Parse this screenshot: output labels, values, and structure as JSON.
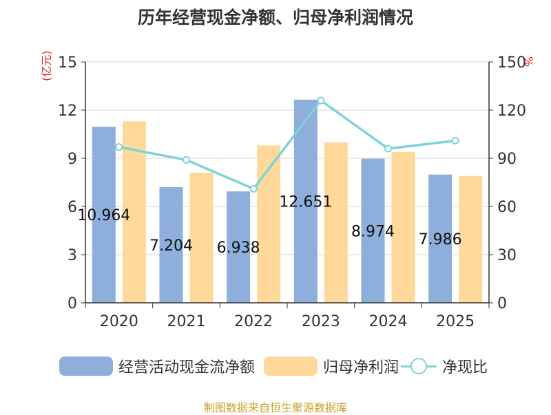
{
  "chart_data": {
    "type": "bar",
    "title": "历年经营现金净额、归母净利润情况",
    "categories": [
      "2020",
      "2021",
      "2022",
      "2023",
      "2024",
      "2025"
    ],
    "series": [
      {
        "name": "经营活动现金流净额",
        "type": "bar",
        "axis": "left",
        "color": "#8eaedb",
        "values": [
          10.964,
          7.204,
          6.938,
          12.651,
          8.974,
          7.986
        ],
        "labels": [
          "10.964",
          "7.204",
          "6.938",
          "12.651",
          "8.974",
          "7.986"
        ]
      },
      {
        "name": "归母净利润",
        "type": "bar",
        "axis": "left",
        "color": "#ffd99a",
        "values": [
          11.3,
          8.1,
          9.8,
          10.0,
          9.4,
          7.9
        ]
      },
      {
        "name": "净现比",
        "type": "line",
        "axis": "right",
        "color": "#7fd2d8",
        "values": [
          97,
          89,
          71,
          126,
          96,
          101
        ]
      }
    ],
    "y_left": {
      "label": "(亿元)",
      "min": 0,
      "max": 15,
      "ticks": [
        0,
        3,
        6,
        9,
        12,
        15
      ]
    },
    "y_right": {
      "label": "%",
      "min": 0,
      "max": 150,
      "ticks": [
        0,
        30,
        60,
        90,
        120,
        150
      ]
    },
    "grid": true,
    "legend_position": "bottom"
  },
  "source": "制图数据来自恒生聚源数据库"
}
